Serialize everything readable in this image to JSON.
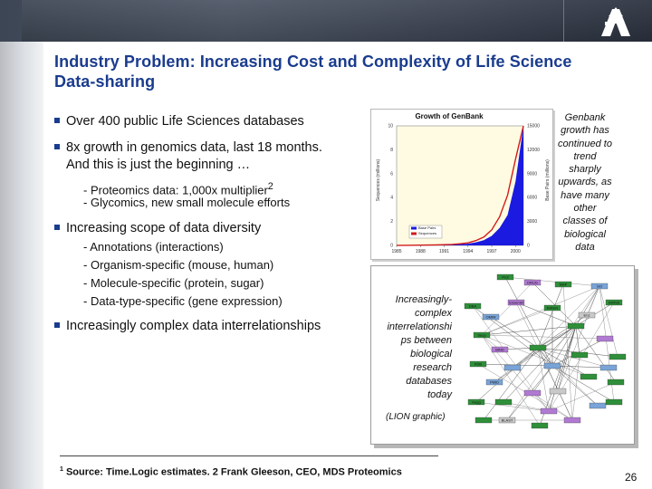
{
  "slide": {
    "title": "Industry Problem: Increasing Cost and Complexity of Life Science Data-sharing",
    "bullets": [
      {
        "text": "Over 400 public Life Sciences databases"
      },
      {
        "text_line1": "8x growth in genomics data, last 18 months.",
        "text_line2": "And this is just the beginning …"
      },
      {
        "text": "Proteomics data: 1,000x multiplier",
        "sup": "2"
      },
      {
        "text": "Glycomics, new small molecule efforts"
      },
      {
        "text": "Increasing scope of data diversity"
      },
      {
        "text": "Annotations (interactions)"
      },
      {
        "text": "Organism-specific (mouse, human)"
      },
      {
        "text": "Molecule-specific (protein, sugar)"
      },
      {
        "text": "Data-type-specific (gene expression)"
      },
      {
        "text": "Increasingly complex data interrelationships"
      }
    ],
    "dash": "-",
    "genbank_caption": [
      "Genbank",
      "growth has",
      "continued to",
      "trend",
      "sharply",
      "upwards, as",
      "have many",
      "other",
      "classes of",
      "biological",
      "data"
    ],
    "graph_caption": [
      "Increasingly-",
      "complex",
      "interrelationshi",
      "ps between",
      "biological",
      "research",
      "databases",
      "today"
    ],
    "graph_credit": "(LION graphic)",
    "footnote": {
      "sup": "1",
      "text": "Source: Time.Logic estimates.   2 Frank Gleeson, CEO, MDS Proteomics"
    },
    "page_number": "26"
  },
  "chart_data": {
    "type": "line",
    "title": "Growth of GenBank",
    "xlabel": "",
    "ylabel": "Sequences (millions)",
    "y2label": "Base Pairs (millions)",
    "x_ticks": [
      "1985",
      "1988",
      "1991",
      "1994",
      "1997",
      "2000"
    ],
    "y_ticks": [
      0,
      2,
      4,
      6,
      8,
      10
    ],
    "y2_ticks": [
      0,
      3000,
      6000,
      9000,
      12000,
      15000
    ],
    "ylim": [
      0,
      10
    ],
    "y2lim": [
      0,
      15000
    ],
    "legend": [
      "Base Pairs",
      "Sequences"
    ],
    "legend_position": "bottom-left",
    "series": [
      {
        "name": "Base Pairs",
        "color": "#1a1ae0",
        "axis": "right",
        "x": [
          1985,
          1986,
          1987,
          1988,
          1989,
          1990,
          1991,
          1992,
          1993,
          1994,
          1995,
          1996,
          1997,
          1998,
          1999,
          2000,
          2001
        ],
        "values": [
          5,
          10,
          16,
          25,
          35,
          50,
          70,
          100,
          160,
          220,
          380,
          650,
          1200,
          2200,
          3800,
          8000,
          15000
        ]
      },
      {
        "name": "Sequences",
        "color": "#d21c1c",
        "axis": "left",
        "x": [
          1985,
          1986,
          1987,
          1988,
          1989,
          1990,
          1991,
          1992,
          1993,
          1994,
          1995,
          1996,
          1997,
          1998,
          1999,
          2000,
          2001
        ],
        "values": [
          0.005,
          0.008,
          0.012,
          0.02,
          0.03,
          0.04,
          0.06,
          0.08,
          0.14,
          0.21,
          0.4,
          0.7,
          1.3,
          2.4,
          4.2,
          7.2,
          10
        ]
      }
    ],
    "grid": false
  },
  "network": {
    "labels": [
      "Prot",
      "DRUG",
      "MAP",
      "GO",
      "SWISS",
      "Enz",
      "RIKEN",
      "Ensembl",
      "OMIM",
      "DBA",
      "Sequ",
      "BIND",
      "PDB",
      "PMID",
      "Kegg",
      "BLAST"
    ]
  },
  "colors": {
    "title": "#1a3c8e",
    "bullet_square": "#1a3c8e",
    "band_dark": "#3d4654",
    "logo": "#ffffff"
  }
}
